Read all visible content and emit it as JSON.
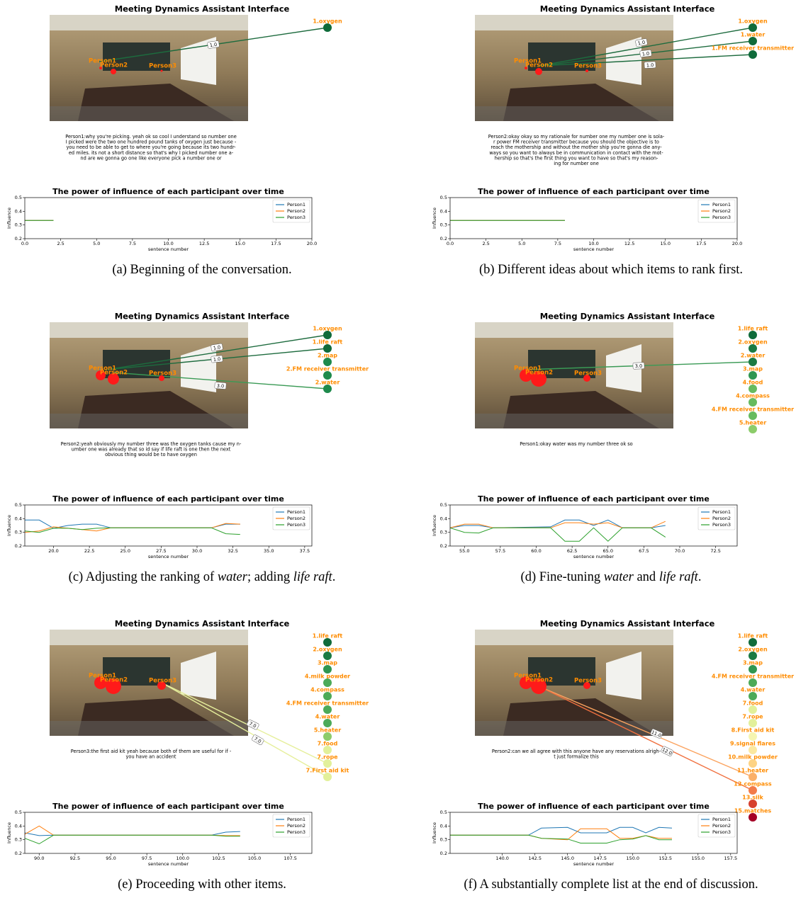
{
  "panels": [
    {
      "title": "Meeting Dynamics Assistant Interface",
      "persons": [
        "Person1",
        "Person2",
        "Person3"
      ],
      "items": [
        {
          "label": "1.oxygen",
          "color": "#0f6b3a"
        }
      ],
      "links": [
        {
          "label": "1.0",
          "color": "#1d6b3e"
        }
      ],
      "transcript": [
        "Person1:why you're picking. yeah ok so cool I understand so number one",
        "I picked were the two one hundred pound tanks of oxygen just because -",
        "you need to be able to get to where you're going because its two hundr-",
        "ed miles. its not a short distance so that's why I picked number one a-",
        "nd are we gonna go one like everyone pick a number one or"
      ],
      "caption": [
        "(a) Beginning of the conversation."
      ]
    },
    {
      "title": "Meeting Dynamics Assistant Interface",
      "persons": [
        "Person1",
        "Person2",
        "Person3"
      ],
      "items": [
        {
          "label": "1.oxygen",
          "color": "#0f6b3a"
        },
        {
          "label": "1.water",
          "color": "#0f6b3a"
        },
        {
          "label": "1.FM receiver transmitter",
          "color": "#0f6b3a"
        }
      ],
      "links": [
        {
          "label": "1.0",
          "color": "#1d6b3e"
        },
        {
          "label": "1.0",
          "color": "#1d6b3e"
        },
        {
          "label": "1.0",
          "color": "#1d6b3e"
        }
      ],
      "transcript": [
        "Person2:okay okay so my rationale for number one my number one is sola-",
        "r power FM receiver transmitter because you should the objective is to",
        "reach the mothership and without the mother ship you're gonna die any-",
        "ways so you want to always be in communication in contact with the mot-",
        "hership so that's the first thing you want to have so that's my reason-",
        "ing for number one"
      ],
      "caption": [
        "(b) Different ideas about which items to rank first."
      ]
    },
    {
      "title": "Meeting Dynamics Assistant Interface",
      "persons": [
        "Person1",
        "Person2",
        "Person3"
      ],
      "items": [
        {
          "label": "1.oxygen",
          "color": "#0f6b3a"
        },
        {
          "label": "1.life raft",
          "color": "#0f6b3a"
        },
        {
          "label": "2.map",
          "color": "#1e8a4c"
        },
        {
          "label": "2.FM receiver transmitter",
          "color": "#1e8a4c"
        },
        {
          "label": "2.water",
          "color": "#1e8a4c"
        }
      ],
      "links": [
        {
          "label": "1.0",
          "color": "#1d6b3e"
        },
        {
          "label": "1.0",
          "color": "#1d6b3e"
        },
        {
          "label": "3.0",
          "color": "#3a9a55"
        }
      ],
      "transcript": [
        "Person2:yeah obviously my number three was the oxygen tanks cause my n-",
        "umber one was already that so id say if life raft is one then the next",
        "obvious thing would be to have oxygen"
      ],
      "caption": [
        "(c) Adjusting the ranking of ",
        "water",
        "; adding ",
        "life raft",
        "."
      ]
    },
    {
      "title": "Meeting Dynamics Assistant Interface",
      "persons": [
        "Person1",
        "Person2",
        "Person3"
      ],
      "items": [
        {
          "label": "1.life raft",
          "color": "#0f6b3a"
        },
        {
          "label": "2.oxygen",
          "color": "#1a7a43"
        },
        {
          "label": "2.water",
          "color": "#1a7a43"
        },
        {
          "label": "3.map",
          "color": "#2f9650"
        },
        {
          "label": "4.food",
          "color": "#66bb5f"
        },
        {
          "label": "4.compass",
          "color": "#66bb5f"
        },
        {
          "label": "4.FM receiver transmitter",
          "color": "#66bb5f"
        },
        {
          "label": "5.heater",
          "color": "#8ccc6a"
        }
      ],
      "links": [
        {
          "label": "3.0",
          "color": "#3a9a55"
        }
      ],
      "transcript": [
        "Person1:okay water was my number three ok so"
      ],
      "caption": [
        "(d) Fine-tuning ",
        "water",
        " and ",
        "life raft",
        "."
      ]
    },
    {
      "title": "Meeting Dynamics Assistant Interface",
      "persons": [
        "Person1",
        "Person2",
        "Person3"
      ],
      "items": [
        {
          "label": "1.life raft",
          "color": "#0f6b3a"
        },
        {
          "label": "2.oxygen",
          "color": "#1a7a43"
        },
        {
          "label": "3.map",
          "color": "#2f9650"
        },
        {
          "label": "4.milk powder",
          "color": "#4caa58"
        },
        {
          "label": "4.compass",
          "color": "#4caa58"
        },
        {
          "label": "4.FM receiver transmitter",
          "color": "#4caa58"
        },
        {
          "label": "4.water",
          "color": "#4caa58"
        },
        {
          "label": "5.heater",
          "color": "#8ccc6a"
        },
        {
          "label": "7.food",
          "color": "#e2f09a"
        },
        {
          "label": "7.rope",
          "color": "#e2f09a"
        },
        {
          "label": "7.First aid kit",
          "color": "#e2f09a"
        }
      ],
      "links": [
        {
          "label": "7.0",
          "color": "#e6ef9c"
        },
        {
          "label": "7.0",
          "color": "#e6ef9c"
        }
      ],
      "transcript": [
        "Person3:the first aid kit yeah because both of them are useful for if -",
        "you have an accident"
      ],
      "caption": [
        "(e) Proceeding with other items."
      ]
    },
    {
      "title": "Meeting Dynamics Assistant Interface",
      "persons": [
        "Person1",
        "Person2",
        "Person3"
      ],
      "items": [
        {
          "label": "1.life raft",
          "color": "#0f6b3a"
        },
        {
          "label": "2.oxygen",
          "color": "#1a7a43"
        },
        {
          "label": "3.map",
          "color": "#2f9650"
        },
        {
          "label": "4.FM receiver transmitter",
          "color": "#4caa58"
        },
        {
          "label": "4.water",
          "color": "#4caa58"
        },
        {
          "label": "7.food",
          "color": "#e2f09a"
        },
        {
          "label": "7.rope",
          "color": "#e2f09a"
        },
        {
          "label": "8.First aid kit",
          "color": "#f5f5b0"
        },
        {
          "label": "9.signal flares",
          "color": "#fbe8a0"
        },
        {
          "label": "10.milk powder",
          "color": "#fdd384"
        },
        {
          "label": "11.heater",
          "color": "#fbb069"
        },
        {
          "label": "12.compass",
          "color": "#f27b4a"
        },
        {
          "label": "13.silk",
          "color": "#d7402e"
        },
        {
          "label": "15.matches",
          "color": "#a50026"
        }
      ],
      "links": [
        {
          "label": "11.0",
          "color": "#fba35f"
        },
        {
          "label": "12.0",
          "color": "#f0703f"
        }
      ],
      "transcript": [
        "Person2:can we all agree with this anyone have any reservations alrigh-",
        "t just formalize this"
      ],
      "caption": [
        "(f) A substantially complete list at the end of discussion."
      ]
    }
  ],
  "chart_data": [
    {
      "type": "line",
      "title": "The power of influence of each participant over time",
      "xlabel": "sentence number",
      "ylabel": "Influence",
      "legend": "upper right",
      "x": [
        0,
        1,
        2
      ],
      "xlim": [
        0,
        20
      ],
      "xticks": [
        {
          "value": 0,
          "label": "0.0"
        },
        2.5,
        {
          "value": 5,
          "label": "5.0"
        },
        7.5,
        {
          "value": 10,
          "label": "10.0"
        },
        12.5,
        {
          "value": 15,
          "label": "15.0"
        },
        17.5,
        {
          "value": 20,
          "label": "20.0"
        }
      ],
      "ylim": [
        0.2,
        0.5
      ],
      "yticks": [
        0.2,
        0.3,
        0.4,
        0.5
      ],
      "series": [
        {
          "name": "Person1",
          "color": "#1f77b4",
          "values": [
            0.333,
            0.333,
            0.333
          ]
        },
        {
          "name": "Person2",
          "color": "#ff7f0e",
          "values": [
            0.333,
            0.333,
            0.333
          ]
        },
        {
          "name": "Person3",
          "color": "#2ca02c",
          "values": [
            0.333,
            0.333,
            0.333
          ]
        }
      ]
    },
    {
      "type": "line",
      "title": "The power of influence of each participant over time",
      "xlabel": "sentence number",
      "ylabel": "Influence",
      "legend": "upper right",
      "x": [
        0,
        2,
        4,
        6,
        8
      ],
      "xlim": [
        0,
        20
      ],
      "xticks": [
        {
          "value": 0,
          "label": "0.0"
        },
        2.5,
        {
          "value": 5,
          "label": "5.0"
        },
        7.5,
        {
          "value": 10,
          "label": "10.0"
        },
        12.5,
        {
          "value": 15,
          "label": "15.0"
        },
        17.5,
        {
          "value": 20,
          "label": "20.0"
        }
      ],
      "ylim": [
        0.2,
        0.5
      ],
      "yticks": [
        0.2,
        0.3,
        0.4,
        0.5
      ],
      "series": [
        {
          "name": "Person1",
          "color": "#1f77b4",
          "values": [
            0.333,
            0.333,
            0.333,
            0.333,
            0.333
          ]
        },
        {
          "name": "Person2",
          "color": "#ff7f0e",
          "values": [
            0.333,
            0.333,
            0.333,
            0.333,
            0.333
          ]
        },
        {
          "name": "Person3",
          "color": "#2ca02c",
          "values": [
            0.333,
            0.333,
            0.333,
            0.333,
            0.333
          ]
        }
      ]
    },
    {
      "type": "line",
      "title": "The power of influence of each participant over time",
      "xlabel": "sentence number",
      "ylabel": "Influence",
      "legend": "upper right",
      "x": [
        18,
        19,
        20,
        21,
        22,
        23,
        24,
        31,
        32,
        33
      ],
      "xlim": [
        18,
        38
      ],
      "xticks": [
        {
          "value": 20,
          "label": "20.0"
        },
        22.5,
        {
          "value": 25,
          "label": "25.0"
        },
        27.5,
        {
          "value": 30,
          "label": "30.0"
        },
        32.5,
        {
          "value": 35,
          "label": "35.0"
        },
        37.5
      ],
      "ylim": [
        0.2,
        0.5
      ],
      "yticks": [
        0.2,
        0.3,
        0.4,
        0.5
      ],
      "series": [
        {
          "name": "Person1",
          "color": "#1f77b4",
          "values": [
            0.39,
            0.39,
            0.33,
            0.35,
            0.36,
            0.36,
            0.333,
            0.333,
            0.36,
            0.36
          ]
        },
        {
          "name": "Person2",
          "color": "#ff7f0e",
          "values": [
            0.3,
            0.31,
            0.34,
            0.33,
            0.32,
            0.31,
            0.333,
            0.333,
            0.365,
            0.36
          ]
        },
        {
          "name": "Person3",
          "color": "#2ca02c",
          "values": [
            0.31,
            0.3,
            0.33,
            0.33,
            0.32,
            0.33,
            0.333,
            0.333,
            0.29,
            0.285
          ]
        }
      ]
    },
    {
      "type": "line",
      "title": "The power of influence of each participant over time",
      "xlabel": "sentence number",
      "ylabel": "Influence",
      "legend": "upper right",
      "x": [
        54,
        55,
        56,
        57,
        61,
        62,
        63,
        64,
        65,
        66,
        68,
        69
      ],
      "xlim": [
        54,
        74
      ],
      "xticks": [
        {
          "value": 55,
          "label": "55.0"
        },
        57.5,
        {
          "value": 60,
          "label": "60.0"
        },
        62.5,
        {
          "value": 65,
          "label": "65.0"
        },
        67.5,
        {
          "value": 70,
          "label": "70.0"
        },
        72.5
      ],
      "ylim": [
        0.2,
        0.5
      ],
      "yticks": [
        0.2,
        0.3,
        0.4,
        0.5
      ],
      "series": [
        {
          "name": "Person1",
          "color": "#1f77b4",
          "values": [
            0.333,
            0.35,
            0.35,
            0.333,
            0.34,
            0.39,
            0.39,
            0.35,
            0.39,
            0.333,
            0.333,
            0.35
          ]
        },
        {
          "name": "Person2",
          "color": "#ff7f0e",
          "values": [
            0.333,
            0.36,
            0.36,
            0.333,
            0.333,
            0.37,
            0.37,
            0.36,
            0.37,
            0.333,
            0.333,
            0.38
          ]
        },
        {
          "name": "Person3",
          "color": "#2ca02c",
          "values": [
            0.333,
            0.3,
            0.295,
            0.333,
            0.333,
            0.235,
            0.235,
            0.333,
            0.235,
            0.333,
            0.333,
            0.265
          ]
        }
      ]
    },
    {
      "type": "line",
      "title": "The power of influence of each participant over time",
      "xlabel": "sentence number",
      "ylabel": "Influence",
      "legend": "upper right",
      "x": [
        89,
        90,
        91,
        102,
        103,
        104
      ],
      "xlim": [
        89,
        109
      ],
      "xticks": [
        {
          "value": 90,
          "label": "90.0"
        },
        92.5,
        {
          "value": 95,
          "label": "95.0"
        },
        97.5,
        {
          "value": 100,
          "label": "100.0"
        },
        102.5,
        {
          "value": 105,
          "label": "105.0"
        },
        107.5
      ],
      "ylim": [
        0.2,
        0.5
      ],
      "yticks": [
        0.2,
        0.3,
        0.4,
        0.5
      ],
      "series": [
        {
          "name": "Person1",
          "color": "#1f77b4",
          "values": [
            0.35,
            0.33,
            0.333,
            0.333,
            0.355,
            0.36
          ]
        },
        {
          "name": "Person2",
          "color": "#ff7f0e",
          "values": [
            0.34,
            0.4,
            0.333,
            0.333,
            0.33,
            0.33
          ]
        },
        {
          "name": "Person3",
          "color": "#2ca02c",
          "values": [
            0.31,
            0.27,
            0.333,
            0.333,
            0.325,
            0.325
          ]
        }
      ]
    },
    {
      "type": "line",
      "title": "The power of influence of each participant over time",
      "xlabel": "sentence number",
      "ylabel": "Influence",
      "legend": "upper right",
      "x": [
        136,
        142,
        143,
        145,
        146,
        148,
        149,
        150,
        151,
        152,
        153
      ],
      "xlim": [
        136,
        158
      ],
      "xticks": [
        {
          "value": 140,
          "label": "140.0"
        },
        142.5,
        {
          "value": 145,
          "label": "145.0"
        },
        147.5,
        {
          "value": 150,
          "label": "150.0"
        },
        152.5,
        {
          "value": 155,
          "label": "155.0"
        },
        157.5
      ],
      "ylim": [
        0.2,
        0.5
      ],
      "yticks": [
        0.2,
        0.3,
        0.4,
        0.5
      ],
      "series": [
        {
          "name": "Person1",
          "color": "#1f77b4",
          "values": [
            0.333,
            0.333,
            0.385,
            0.39,
            0.35,
            0.35,
            0.39,
            0.39,
            0.35,
            0.39,
            0.385
          ]
        },
        {
          "name": "Person2",
          "color": "#ff7f0e",
          "values": [
            0.333,
            0.333,
            0.31,
            0.3,
            0.38,
            0.38,
            0.31,
            0.31,
            0.33,
            0.31,
            0.31
          ]
        },
        {
          "name": "Person3",
          "color": "#2ca02c",
          "values": [
            0.333,
            0.333,
            0.31,
            0.305,
            0.275,
            0.275,
            0.3,
            0.305,
            0.33,
            0.3,
            0.3
          ]
        }
      ]
    }
  ]
}
